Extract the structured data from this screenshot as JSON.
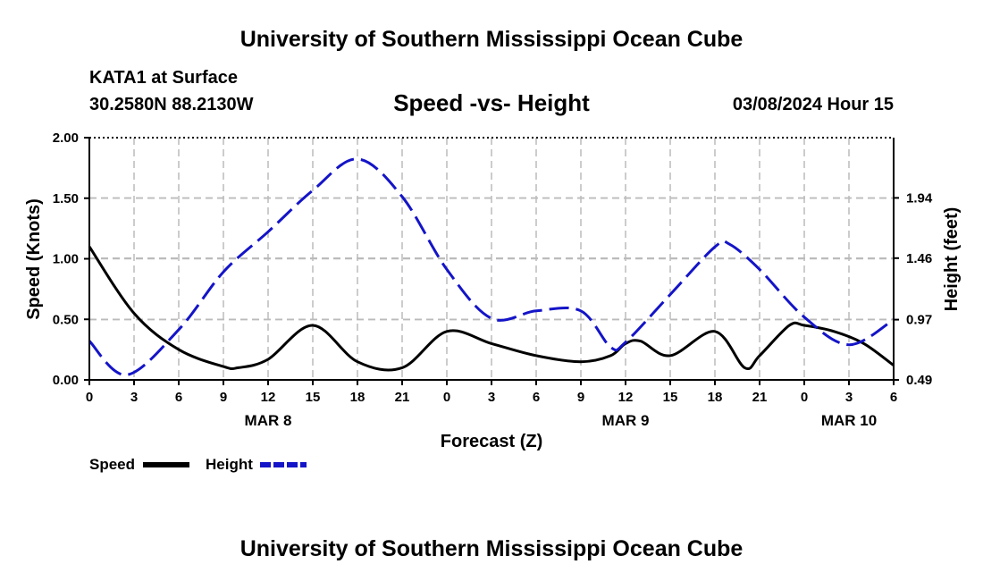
{
  "header": {
    "title": "University of Southern Mississippi Ocean Cube",
    "station": "KATA1 at Surface",
    "coords": "30.2580N  88.2130W",
    "datetime": "03/08/2024 Hour 15"
  },
  "footer": {
    "title": "University of Southern Mississippi Ocean Cube"
  },
  "colors": {
    "speed": "#000000",
    "height": "#1414c8",
    "grid": "#bbbbbb"
  },
  "chart_data": {
    "type": "line",
    "title": "Speed -vs- Height",
    "xlabel": "Forecast (Z)",
    "ylabel": "Speed (Knots)",
    "y2label": "Height (feet)",
    "x_unit": "hours since MAR 8 00Z",
    "xlim": [
      0,
      54
    ],
    "ylim": [
      0,
      2.0
    ],
    "y2lim": [
      0.49,
      2.42
    ],
    "x_ticks": [
      0,
      3,
      6,
      9,
      12,
      15,
      18,
      21,
      24,
      27,
      30,
      33,
      36,
      39,
      42,
      45,
      48,
      51,
      54
    ],
    "x_tick_labels": [
      "0",
      "3",
      "6",
      "9",
      "12",
      "15",
      "18",
      "21",
      "0",
      "3",
      "6",
      "9",
      "12",
      "15",
      "18",
      "21",
      "0",
      "3",
      "6"
    ],
    "date_labels": [
      {
        "x": 12,
        "label": "MAR 8"
      },
      {
        "x": 36,
        "label": "MAR 9"
      },
      {
        "x": 51,
        "label": "MAR 10"
      }
    ],
    "y_ticks": [
      0,
      0.5,
      1.0,
      1.5,
      2.0
    ],
    "y_tick_labels": [
      "0.00",
      "0.50",
      "1.00",
      "1.50",
      "2.00"
    ],
    "y2_ticks": [
      0.49,
      0.97,
      1.46,
      1.94
    ],
    "y2_tick_labels": [
      "0.49",
      "0.97",
      "1.46",
      "1.94"
    ],
    "legend": {
      "position": "bottom-left",
      "entries": [
        "Speed",
        "Height"
      ]
    },
    "series": [
      {
        "name": "Speed",
        "axis": "left",
        "style": "solid",
        "x": [
          0,
          3,
          6,
          9,
          10,
          12,
          15,
          18,
          21,
          24,
          27,
          30,
          33,
          35,
          36,
          37,
          39,
          42,
          44,
          45,
          47,
          48,
          50,
          52,
          54
        ],
        "values": [
          1.1,
          0.55,
          0.25,
          0.11,
          0.1,
          0.17,
          0.45,
          0.15,
          0.1,
          0.4,
          0.3,
          0.2,
          0.15,
          0.2,
          0.3,
          0.32,
          0.2,
          0.4,
          0.1,
          0.2,
          0.45,
          0.45,
          0.4,
          0.3,
          0.12
        ]
      },
      {
        "name": "Height",
        "axis": "right",
        "style": "dashed",
        "x": [
          0,
          2.5,
          6,
          9,
          12,
          15,
          18,
          21,
          24,
          27,
          30,
          33,
          35,
          36,
          39,
          42,
          43,
          45,
          48,
          51,
          54
        ],
        "values": [
          0.8,
          0.53,
          0.89,
          1.35,
          1.67,
          2.0,
          2.25,
          1.95,
          1.37,
          0.98,
          1.04,
          1.04,
          0.75,
          0.79,
          1.17,
          1.55,
          1.57,
          1.37,
          0.99,
          0.77,
          0.97
        ]
      }
    ]
  }
}
